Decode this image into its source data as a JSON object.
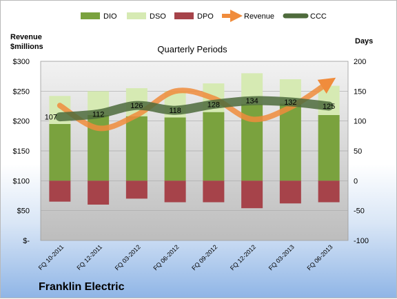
{
  "company": "Franklin Electric",
  "chart_data": {
    "type": "bar",
    "subtitle": "Quarterly Periods",
    "categories": [
      "FQ 10-2011",
      "FQ 12-2011",
      "FQ 03-2012",
      "FQ 06-2012",
      "FQ 09-2012",
      "FQ 12-2012",
      "FQ 03-2013",
      "FQ 06-2013"
    ],
    "left_axis": {
      "title_line1": "Revenue",
      "title_line2": "$millions",
      "ticks": [
        "$-",
        "$50",
        "$100",
        "$150",
        "$200",
        "$250",
        "$300"
      ],
      "range": [
        0,
        300
      ]
    },
    "right_axis": {
      "title": "Days",
      "ticks": [
        "-100",
        "-50",
        "0",
        "50",
        "100",
        "150",
        "200"
      ],
      "range": [
        -100,
        200
      ]
    },
    "legend": {
      "position": "top"
    },
    "series": [
      {
        "name": "DIO",
        "type": "bar",
        "axis": "days",
        "color": "#7aa23e",
        "values": [
          95,
          110,
          108,
          106,
          115,
          128,
          129,
          110
        ]
      },
      {
        "name": "DSO",
        "type": "bar",
        "axis": "days",
        "color": "#d6eab3",
        "values": [
          47,
          40,
          47,
          44,
          48,
          52,
          41,
          49
        ]
      },
      {
        "name": "DPO",
        "type": "bar",
        "axis": "days",
        "color": "#a6434a",
        "values": [
          -35,
          -40,
          -30,
          -36,
          -36,
          -46,
          -38,
          -36
        ]
      },
      {
        "name": "Revenue",
        "type": "line",
        "axis": "revenue",
        "color": "#f08c3c",
        "values": [
          226,
          188,
          210,
          250,
          238,
          203,
          223,
          265
        ]
      },
      {
        "name": "CCC",
        "type": "line",
        "axis": "days",
        "color": "#4e6b3c",
        "values": [
          107,
          112,
          126,
          118,
          128,
          134,
          132,
          125
        ]
      }
    ],
    "ccc_labels": [
      "107",
      "112",
      "126",
      "118",
      "128",
      "134",
      "132",
      "125"
    ]
  }
}
